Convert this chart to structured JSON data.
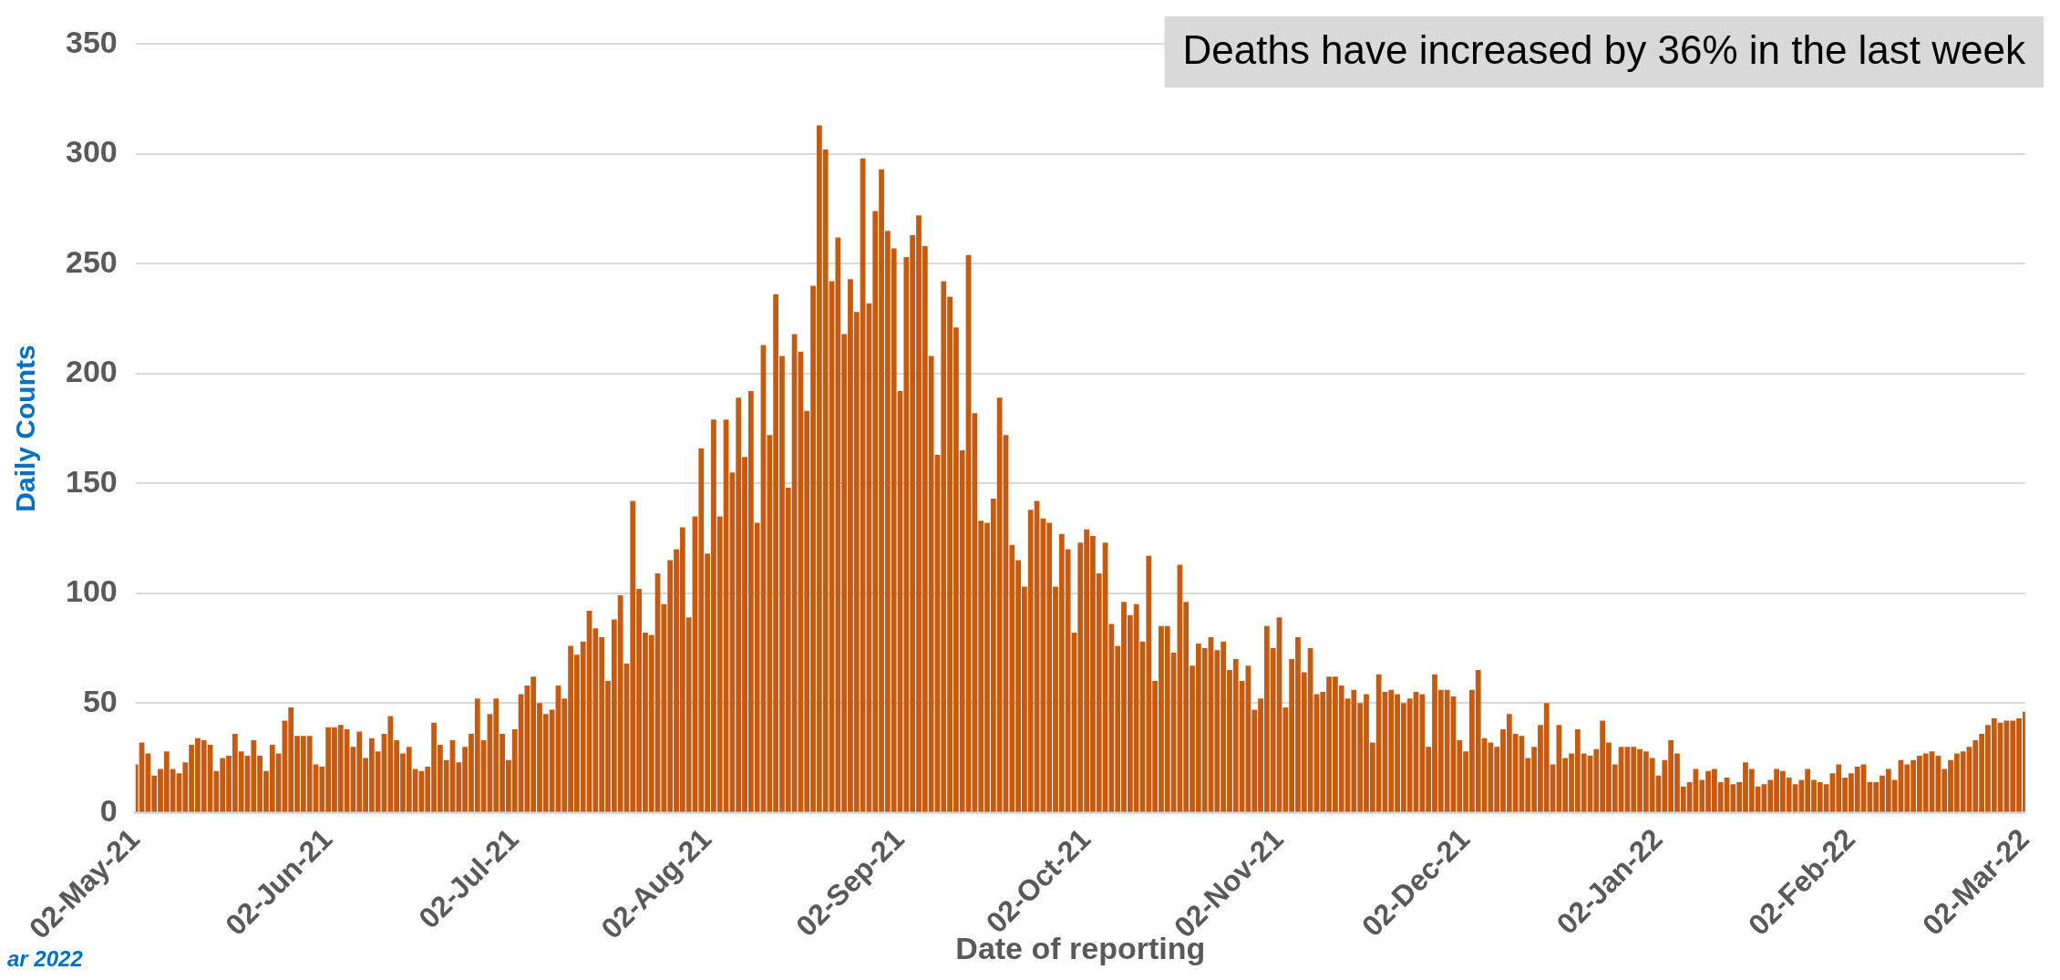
{
  "chart_data": {
    "type": "bar",
    "xlabel": "Date of reporting",
    "ylabel": "Daily Counts",
    "color": "#c55a11",
    "ylim": [
      0,
      350
    ],
    "yticks": [
      0,
      50,
      100,
      150,
      200,
      250,
      300,
      350
    ],
    "grid": "y",
    "annotations": [
      "Deaths have increased by 36% in the last week",
      "ar 2022"
    ],
    "categories": [
      "02-May-21",
      null,
      null,
      null,
      null,
      null,
      null,
      null,
      null,
      null,
      null,
      null,
      null,
      null,
      null,
      null,
      null,
      null,
      null,
      null,
      null,
      null,
      null,
      null,
      null,
      null,
      null,
      null,
      null,
      null,
      null,
      "02-Jun-21",
      null,
      null,
      null,
      null,
      null,
      null,
      null,
      null,
      null,
      null,
      null,
      null,
      null,
      null,
      null,
      null,
      null,
      null,
      null,
      null,
      null,
      null,
      null,
      null,
      null,
      null,
      null,
      null,
      null,
      "02-Jul-21",
      null,
      null,
      null,
      null,
      null,
      null,
      null,
      null,
      null,
      null,
      null,
      null,
      null,
      null,
      null,
      null,
      null,
      null,
      null,
      null,
      null,
      null,
      null,
      null,
      null,
      null,
      null,
      null,
      null,
      null,
      "02-Aug-21",
      null,
      null,
      null,
      null,
      null,
      null,
      null,
      null,
      null,
      null,
      null,
      null,
      null,
      null,
      null,
      null,
      null,
      null,
      null,
      null,
      null,
      null,
      null,
      null,
      null,
      null,
      null,
      null,
      null,
      null,
      "02-Sep-21",
      null,
      null,
      null,
      null,
      null,
      null,
      null,
      null,
      null,
      null,
      null,
      null,
      null,
      null,
      null,
      null,
      null,
      null,
      null,
      null,
      null,
      null,
      null,
      null,
      null,
      null,
      null,
      null,
      null,
      "02-Oct-21",
      null,
      null,
      null,
      null,
      null,
      null,
      null,
      null,
      null,
      null,
      null,
      null,
      null,
      null,
      null,
      null,
      null,
      null,
      null,
      null,
      null,
      null,
      null,
      null,
      null,
      null,
      null,
      null,
      null,
      null,
      "02-Nov-21",
      null,
      null,
      null,
      null,
      null,
      null,
      null,
      null,
      null,
      null,
      null,
      null,
      null,
      null,
      null,
      null,
      null,
      null,
      null,
      null,
      null,
      null,
      null,
      null,
      null,
      null,
      null,
      null,
      null,
      "02-Dec-21",
      null,
      null,
      null,
      null,
      null,
      null,
      null,
      null,
      null,
      null,
      null,
      null,
      null,
      null,
      null,
      null,
      null,
      null,
      null,
      null,
      null,
      null,
      null,
      null,
      null,
      null,
      null,
      null,
      null,
      null,
      "02-Jan-22",
      null,
      null,
      null,
      null,
      null,
      null,
      null,
      null,
      null,
      null,
      null,
      null,
      null,
      null,
      null,
      null,
      null,
      null,
      null,
      null,
      null,
      null,
      null,
      null,
      null,
      null,
      null,
      null,
      null,
      null,
      "02-Feb-22",
      null,
      null,
      null,
      null,
      null,
      null,
      null,
      null,
      null,
      null,
      null,
      null,
      null,
      null,
      null,
      null,
      null,
      null,
      null,
      null,
      null,
      null,
      null,
      null,
      null,
      null,
      null,
      "02-Mar-22"
    ],
    "values": [
      22,
      32,
      27,
      17,
      20,
      28,
      20,
      18,
      23,
      31,
      34,
      33,
      31,
      19,
      25,
      26,
      36,
      28,
      26,
      33,
      26,
      19,
      31,
      27,
      42,
      48,
      35,
      35,
      35,
      22,
      21,
      39,
      39,
      40,
      38,
      30,
      37,
      25,
      34,
      28,
      36,
      44,
      33,
      27,
      30,
      20,
      19,
      21,
      41,
      31,
      24,
      33,
      23,
      30,
      36,
      52,
      33,
      45,
      52,
      36,
      24,
      38,
      54,
      58,
      62,
      50,
      45,
      47,
      58,
      52,
      76,
      72,
      78,
      92,
      84,
      80,
      60,
      88,
      99,
      68,
      142,
      102,
      82,
      81,
      109,
      95,
      115,
      120,
      130,
      89,
      135,
      166,
      118,
      179,
      135,
      179,
      155,
      189,
      162,
      192,
      132,
      213,
      172,
      236,
      208,
      148,
      218,
      210,
      183,
      240,
      313,
      302,
      242,
      262,
      218,
      243,
      228,
      298,
      232,
      274,
      293,
      265,
      257,
      192,
      253,
      263,
      272,
      258,
      208,
      163,
      242,
      235,
      221,
      165,
      254,
      182,
      133,
      132,
      143,
      189,
      172,
      122,
      115,
      103,
      138,
      142,
      134,
      132,
      103,
      127,
      120,
      82,
      123,
      129,
      126,
      109,
      123,
      86,
      76,
      96,
      90,
      95,
      78,
      117,
      60,
      85,
      85,
      73,
      113,
      96,
      67,
      77,
      75,
      80,
      74,
      78,
      65,
      70,
      60,
      67,
      47,
      52,
      85,
      75,
      89,
      48,
      70,
      80,
      64,
      75,
      54,
      55,
      62,
      62,
      58,
      52,
      56,
      50,
      54,
      32,
      63,
      55,
      56,
      54,
      50,
      52,
      55,
      54,
      30,
      63,
      56,
      56,
      53,
      33,
      28,
      56,
      65,
      34,
      32,
      30,
      38,
      45,
      36,
      35,
      25,
      30,
      40,
      50,
      22,
      40,
      25,
      27,
      38,
      27,
      26,
      29,
      42,
      32,
      22,
      30,
      30,
      30,
      29,
      28,
      25,
      17,
      24,
      33,
      27,
      12,
      14,
      20,
      15,
      19,
      20,
      14,
      16,
      13,
      14,
      23,
      20,
      12,
      13,
      15,
      20,
      19,
      16,
      13,
      15,
      20,
      15,
      14,
      13,
      18,
      22,
      16,
      18,
      21,
      22,
      14,
      14,
      17,
      20,
      15,
      24,
      22,
      24,
      26,
      27,
      28,
      26,
      20,
      24,
      27,
      28,
      30,
      33,
      36,
      40,
      43,
      41,
      42,
      42,
      43,
      46
    ]
  }
}
